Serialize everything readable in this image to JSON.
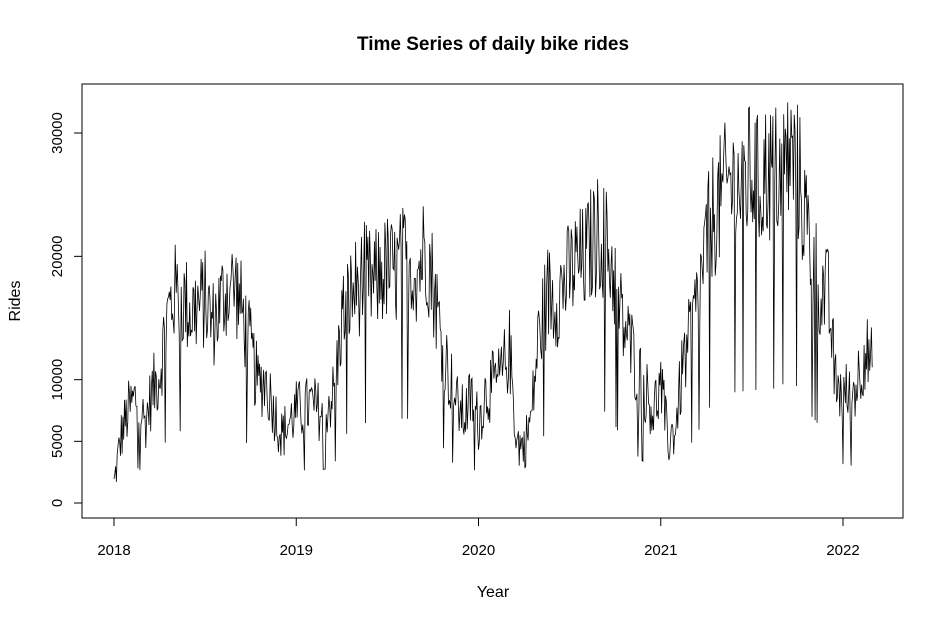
{
  "chart_data": {
    "type": "line",
    "title": "Time Series of daily bike rides",
    "xlabel": "Year",
    "ylabel": "Rides",
    "xlim": [
      2018.0,
      2022.18
    ],
    "ylim": [
      0,
      33000
    ],
    "x_ticks": [
      {
        "value": 2018,
        "label": "2018"
      },
      {
        "value": 2019,
        "label": "2019"
      },
      {
        "value": 2020,
        "label": "2020"
      },
      {
        "value": 2021,
        "label": "2021"
      },
      {
        "value": 2022,
        "label": "2022"
      }
    ],
    "y_ticks": [
      {
        "value": 0,
        "label": "0"
      },
      {
        "value": 5000,
        "label": "5000"
      },
      {
        "value": 10000,
        "label": "10000"
      },
      {
        "value": 20000,
        "label": "20000"
      },
      {
        "value": 30000,
        "label": "30000"
      }
    ],
    "grid": false,
    "series": [
      {
        "color": "#000000",
        "x": [
          2018.0,
          2018.04,
          2018.08,
          2018.12,
          2018.17,
          2018.21,
          2018.25,
          2018.29,
          2018.33,
          2018.38,
          2018.42,
          2018.46,
          2018.5,
          2018.54,
          2018.58,
          2018.62,
          2018.67,
          2018.71,
          2018.75,
          2018.79,
          2018.83,
          2018.88,
          2018.92,
          2018.96,
          2019.0,
          2019.04,
          2019.08,
          2019.12,
          2019.17,
          2019.21,
          2019.25,
          2019.29,
          2019.33,
          2019.38,
          2019.42,
          2019.46,
          2019.5,
          2019.54,
          2019.58,
          2019.62,
          2019.67,
          2019.71,
          2019.75,
          2019.79,
          2019.83,
          2019.88,
          2019.92,
          2019.96,
          2020.0,
          2020.04,
          2020.08,
          2020.12,
          2020.17,
          2020.21,
          2020.25,
          2020.29,
          2020.33,
          2020.38,
          2020.42,
          2020.46,
          2020.5,
          2020.54,
          2020.58,
          2020.62,
          2020.67,
          2020.71,
          2020.75,
          2020.79,
          2020.83,
          2020.88,
          2020.92,
          2020.96,
          2021.0,
          2021.04,
          2021.08,
          2021.12,
          2021.17,
          2021.21,
          2021.25,
          2021.29,
          2021.33,
          2021.38,
          2021.42,
          2021.46,
          2021.5,
          2021.54,
          2021.58,
          2021.62,
          2021.67,
          2021.71,
          2021.75,
          2021.79,
          2021.83,
          2021.88,
          2021.92,
          2021.96,
          2022.0,
          2022.04,
          2022.08,
          2022.12,
          2022.16
        ],
        "values": [
          1500,
          5500,
          7500,
          8500,
          6500,
          9000,
          10500,
          15000,
          17000,
          16500,
          15500,
          16000,
          16500,
          14500,
          16000,
          17500,
          17500,
          15000,
          12500,
          9500,
          10000,
          7500,
          5500,
          6500,
          7500,
          7500,
          8000,
          7500,
          8000,
          9000,
          15000,
          16500,
          17500,
          18500,
          17500,
          18500,
          19000,
          18500,
          19500,
          19500,
          19000,
          21000,
          18000,
          14000,
          11000,
          8000,
          7000,
          8500,
          6500,
          9000,
          9500,
          10000,
          12500,
          5000,
          4500,
          7000,
          13500,
          17000,
          16500,
          17500,
          18500,
          19500,
          19500,
          21000,
          22000,
          20500,
          18000,
          14500,
          13000,
          10500,
          9000,
          7500,
          9500,
          5000,
          6000,
          11000,
          14000,
          17000,
          21000,
          23500,
          24500,
          26000,
          25500,
          26000,
          27000,
          25500,
          27000,
          26500,
          27500,
          28000,
          27000,
          23500,
          20000,
          17500,
          16500,
          9500,
          9000,
          8500,
          10000,
          12500,
          11000
        ]
      }
    ]
  }
}
